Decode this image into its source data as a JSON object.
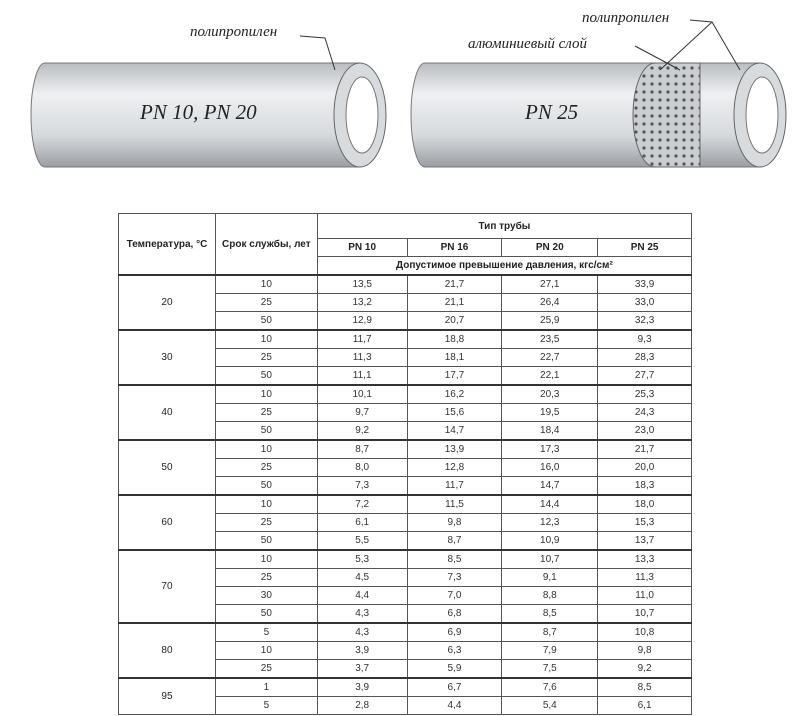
{
  "illustration": {
    "left_pipe": {
      "layer_label": "полипропилен",
      "name": "PN 10, PN 20"
    },
    "right_pipe": {
      "layer_labels": [
        "полипропилен",
        "алюминиевый слой"
      ],
      "name": "PN 25"
    }
  },
  "table": {
    "headers": {
      "temperature": "Температура, °С",
      "service_life": "Срок службы, лет",
      "pipe_type": "Тип трубы",
      "pipe_types": [
        "PN 10",
        "PN 16",
        "PN 20",
        "PN 25"
      ],
      "pressure": "Допустимое превышение давления, кгс/см²"
    },
    "groups": [
      {
        "temp": "20",
        "rows": [
          [
            "10",
            "13,5",
            "21,7",
            "27,1",
            "33,9"
          ],
          [
            "25",
            "13,2",
            "21,1",
            "26,4",
            "33,0"
          ],
          [
            "50",
            "12,9",
            "20,7",
            "25,9",
            "32,3"
          ]
        ]
      },
      {
        "temp": "30",
        "rows": [
          [
            "10",
            "11,7",
            "18,8",
            "23,5",
            "9,3"
          ],
          [
            "25",
            "11,3",
            "18,1",
            "22,7",
            "28,3"
          ],
          [
            "50",
            "11,1",
            "17,7",
            "22,1",
            "27,7"
          ]
        ]
      },
      {
        "temp": "40",
        "rows": [
          [
            "10",
            "10,1",
            "16,2",
            "20,3",
            "25,3"
          ],
          [
            "25",
            "9,7",
            "15,6",
            "19,5",
            "24,3"
          ],
          [
            "50",
            "9,2",
            "14,7",
            "18,4",
            "23,0"
          ]
        ]
      },
      {
        "temp": "50",
        "rows": [
          [
            "10",
            "8,7",
            "13,9",
            "17,3",
            "21,7"
          ],
          [
            "25",
            "8,0",
            "12,8",
            "16,0",
            "20,0"
          ],
          [
            "50",
            "7,3",
            "11,7",
            "14,7",
            "18,3"
          ]
        ]
      },
      {
        "temp": "60",
        "rows": [
          [
            "10",
            "7,2",
            "11,5",
            "14,4",
            "18,0"
          ],
          [
            "25",
            "6,1",
            "9,8",
            "12,3",
            "15,3"
          ],
          [
            "50",
            "5,5",
            "8,7",
            "10,9",
            "13,7"
          ]
        ]
      },
      {
        "temp": "70",
        "rows": [
          [
            "10",
            "5,3",
            "8,5",
            "10,7",
            "13,3"
          ],
          [
            "25",
            "4,5",
            "7,3",
            "9,1",
            "11,3"
          ],
          [
            "30",
            "4,4",
            "7,0",
            "8,8",
            "11,0"
          ],
          [
            "50",
            "4,3",
            "6,8",
            "8,5",
            "10,7"
          ]
        ]
      },
      {
        "temp": "80",
        "rows": [
          [
            "5",
            "4,3",
            "6,9",
            "8,7",
            "10,8"
          ],
          [
            "10",
            "3,9",
            "6,3",
            "7,9",
            "9,8"
          ],
          [
            "25",
            "3,7",
            "5,9",
            "7,5",
            "9,2"
          ]
        ]
      },
      {
        "temp": "95",
        "rows": [
          [
            "1",
            "3,9",
            "6,7",
            "7,6",
            "8,5"
          ],
          [
            "5",
            "2,8",
            "4,4",
            "5,4",
            "6,1"
          ]
        ]
      }
    ]
  }
}
